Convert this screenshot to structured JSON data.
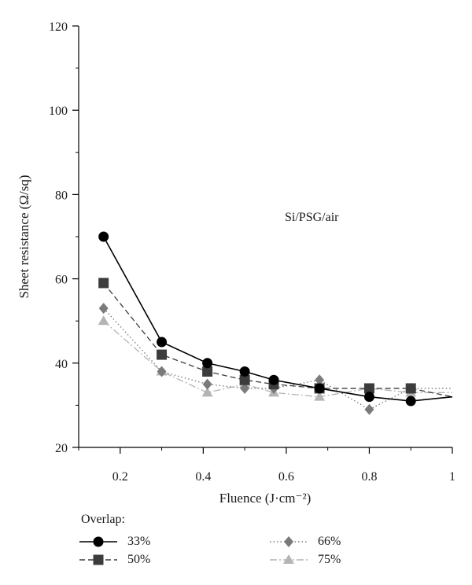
{
  "chart_data": {
    "type": "line",
    "xlabel": "Fluence (J·cm⁻²)",
    "ylabel": "Sheet resistance (Ω/sq)",
    "annotation": "Si/PSG/air",
    "xlim": [
      0.1,
      1.0
    ],
    "ylim": [
      20,
      120
    ],
    "x_ticks": [
      0.2,
      0.4,
      0.6,
      0.8,
      1.0
    ],
    "x_tick_labels": [
      "0.2",
      "0.4",
      "0.6",
      "0.8",
      "1"
    ],
    "y_ticks": [
      20,
      40,
      60,
      80,
      100,
      120
    ],
    "y_tick_labels": [
      "20",
      "40",
      "60",
      "80",
      "100",
      "120"
    ],
    "grid": false,
    "legend_title": "Overlap:",
    "legend_placement": "bottom",
    "series": [
      {
        "name": "33%",
        "color": "#000000",
        "marker": "circle",
        "line_style": "solid",
        "x": [
          0.16,
          0.3,
          0.41,
          0.5,
          0.57,
          0.68,
          0.8,
          0.9
        ],
        "y": [
          70,
          45,
          40,
          38,
          36,
          34,
          32,
          31
        ],
        "line_end": {
          "x": 1.0,
          "y": 32
        }
      },
      {
        "name": "50%",
        "color": "#3c3c3c",
        "marker": "square",
        "line_style": "dashed",
        "x": [
          0.16,
          0.3,
          0.41,
          0.5,
          0.57,
          0.68,
          0.8,
          0.9
        ],
        "y": [
          59,
          42,
          38,
          36,
          35,
          34,
          34,
          34
        ],
        "line_end": {
          "x": 1.0,
          "y": 32
        }
      },
      {
        "name": "66%",
        "color": "#7a7a7a",
        "marker": "diamond",
        "line_style": "dotted",
        "x": [
          0.16,
          0.3,
          0.41,
          0.5,
          0.57,
          0.68,
          0.8,
          0.9
        ],
        "y": [
          53,
          38,
          35,
          34,
          34,
          36,
          29,
          34
        ],
        "line_end": {
          "x": 1.0,
          "y": 34
        }
      },
      {
        "name": "75%",
        "color": "#b4b4b4",
        "marker": "triangle",
        "line_style": "dashdot",
        "x": [
          0.16,
          0.3,
          0.41,
          0.5,
          0.57,
          0.68,
          0.8,
          0.9
        ],
        "y": [
          50,
          38,
          33,
          35,
          33,
          32,
          34,
          33
        ],
        "line_end": {
          "x": 1.0,
          "y": 33
        }
      }
    ]
  }
}
